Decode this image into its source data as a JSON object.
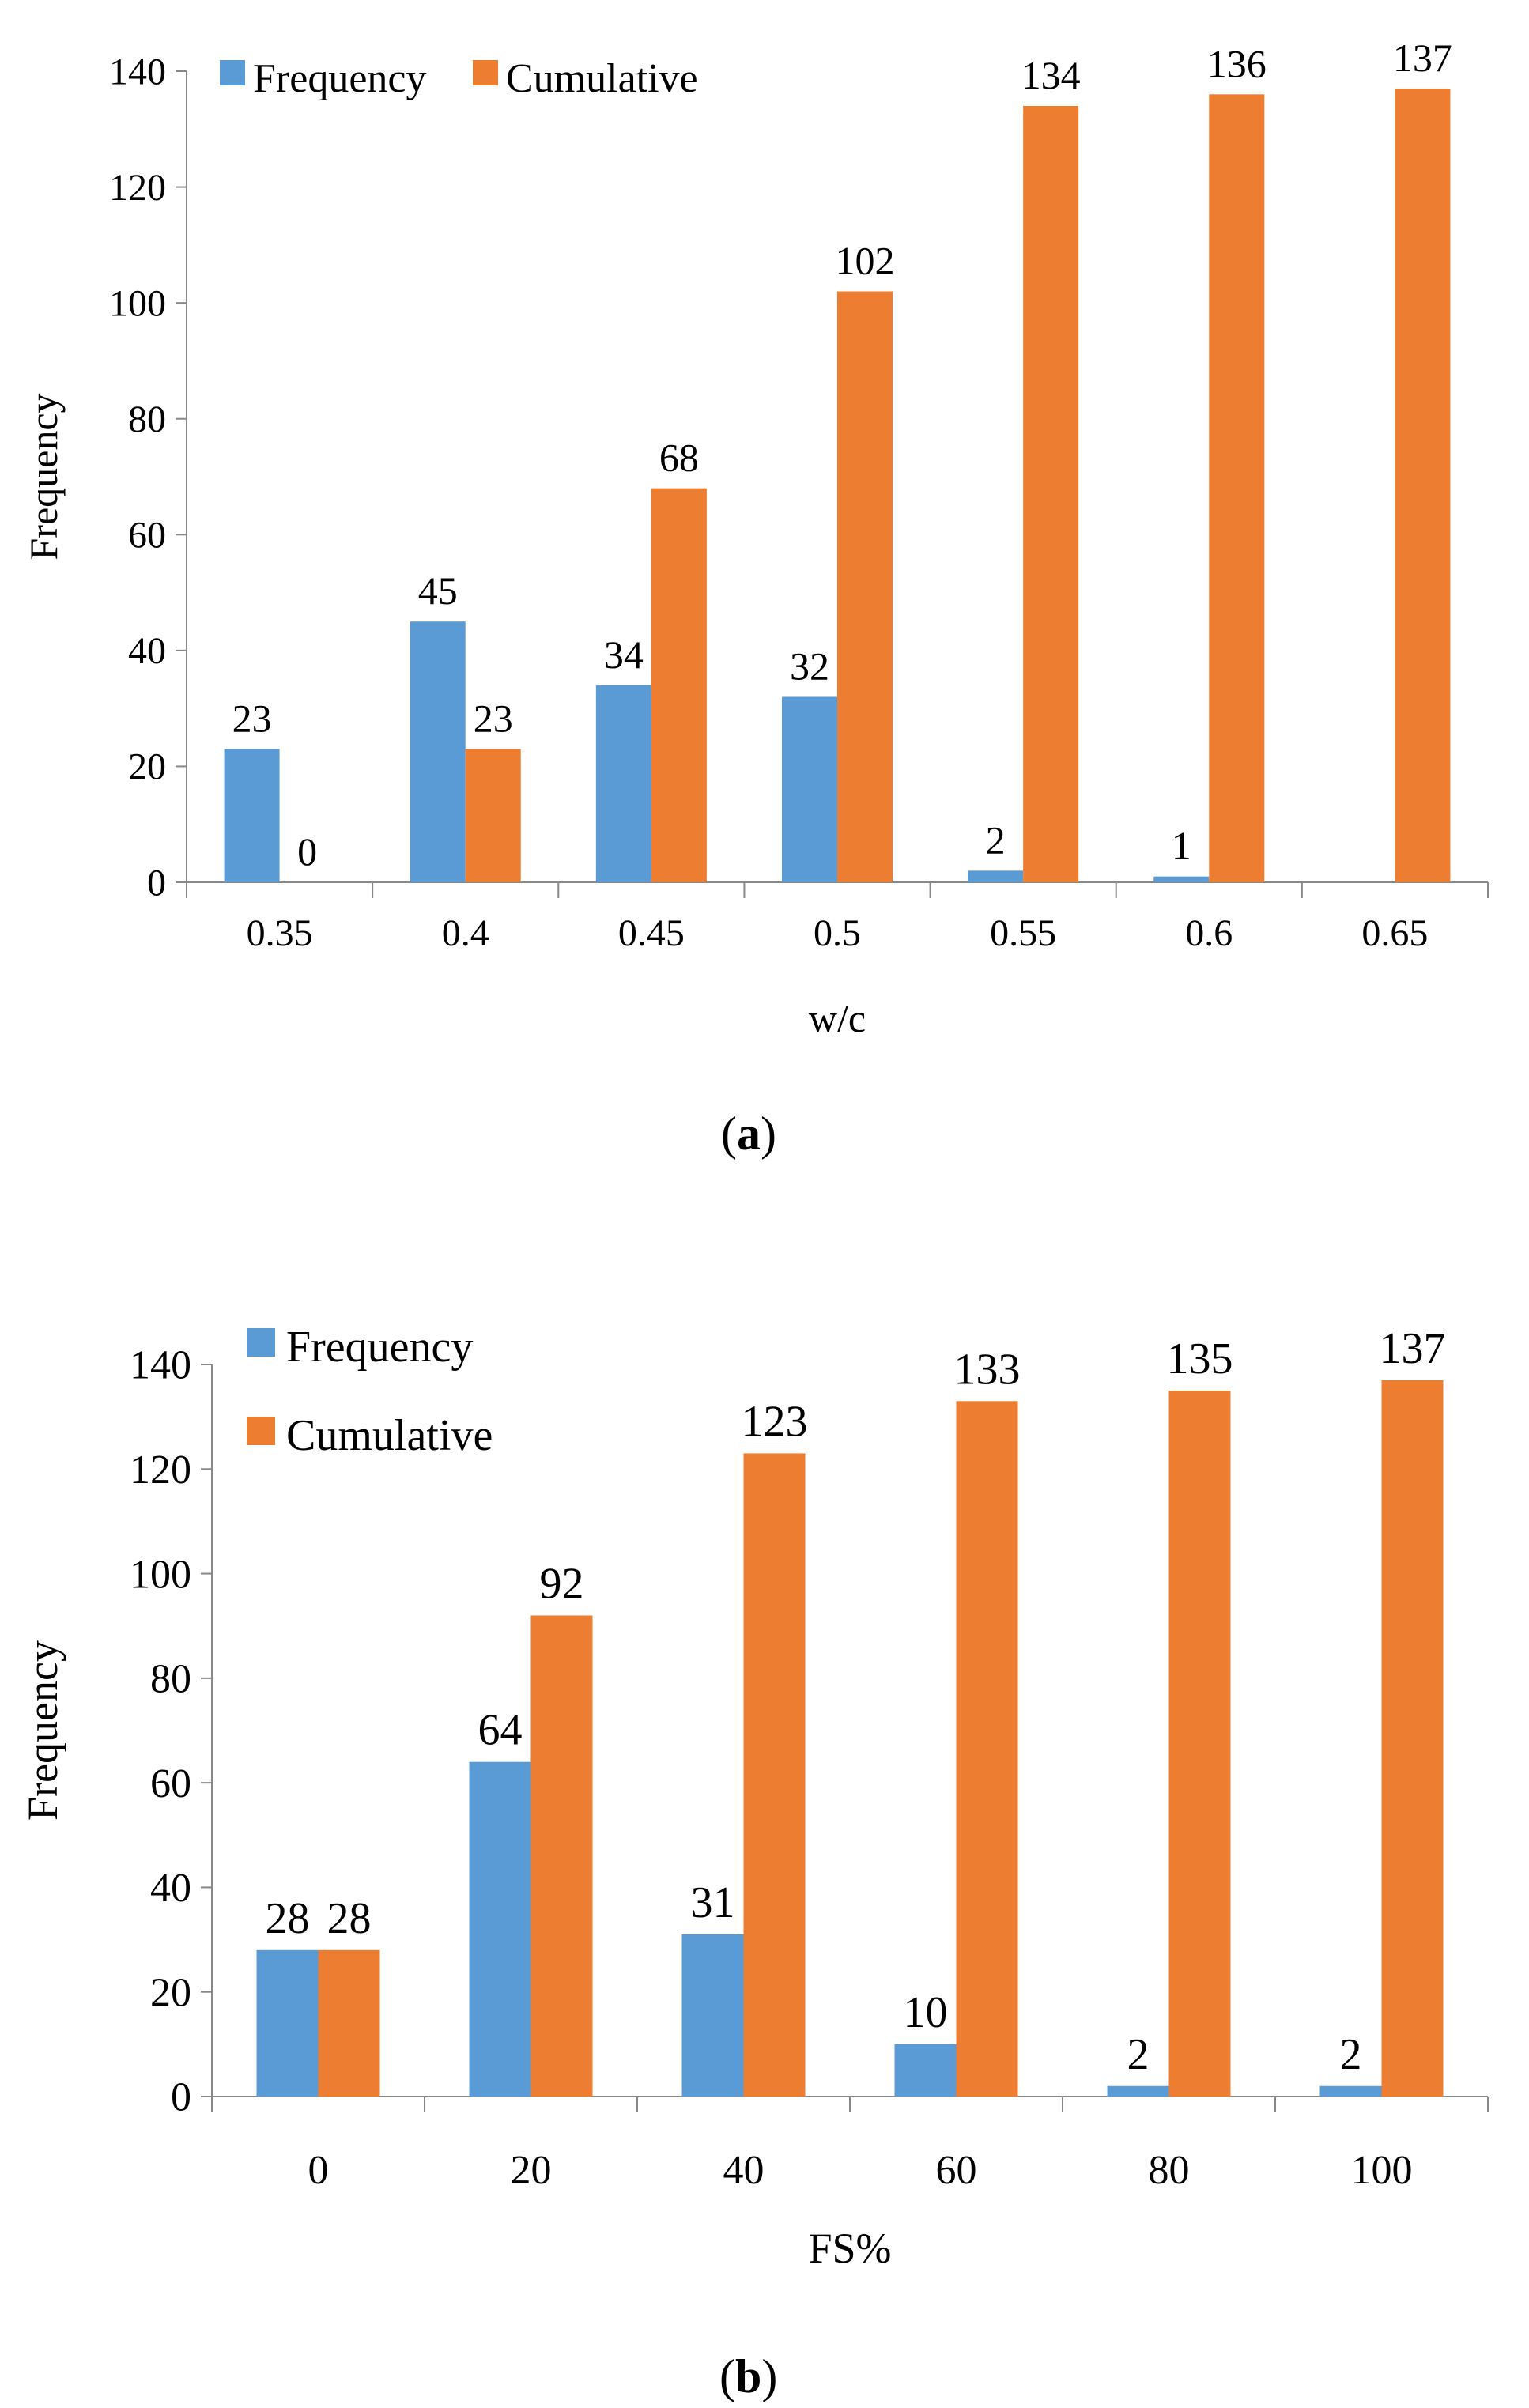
{
  "colors": {
    "frequency": "#5B9BD5",
    "cumulative": "#ED7D31",
    "axis": "#888888"
  },
  "chart_data": [
    {
      "type": "bar",
      "panel": "(a)",
      "panel_letter": "a",
      "xlabel": "w/c",
      "ylabel": "Frequency",
      "ylim": [
        0,
        140
      ],
      "yticks": [
        "0",
        "20",
        "40",
        "60",
        "80",
        "100",
        "120",
        "140"
      ],
      "legend_position": "top-left-inline",
      "categories": [
        "0.35",
        "0.4",
        "0.45",
        "0.5",
        "0.55",
        "0.6",
        "0.65"
      ],
      "series": [
        {
          "name": "Frequency",
          "values": [
            23,
            45,
            34,
            32,
            2,
            1,
            0
          ],
          "labels": [
            "23",
            "45",
            "34",
            "32",
            "2",
            "1",
            ""
          ]
        },
        {
          "name": "Cumulative",
          "values": [
            0,
            23,
            68,
            102,
            134,
            136,
            137
          ],
          "labels": [
            "0",
            "23",
            "68",
            "102",
            "134",
            "136",
            "137"
          ]
        }
      ]
    },
    {
      "type": "bar",
      "panel": "(b)",
      "panel_letter": "b",
      "xlabel": "FS%",
      "ylabel": "Frequency",
      "ylim": [
        0,
        140
      ],
      "yticks": [
        "0",
        "20",
        "40",
        "60",
        "80",
        "100",
        "120",
        "140"
      ],
      "legend_position": "top-left-stacked",
      "categories": [
        "0",
        "20",
        "40",
        "60",
        "80",
        "100"
      ],
      "series": [
        {
          "name": "Frequency",
          "values": [
            28,
            64,
            31,
            10,
            2,
            2
          ],
          "labels": [
            "28",
            "64",
            "31",
            "10",
            "2",
            "2"
          ]
        },
        {
          "name": "Cumulative",
          "values": [
            28,
            92,
            123,
            133,
            135,
            137
          ],
          "labels": [
            "28",
            "92",
            "123",
            "133",
            "135",
            "137"
          ]
        }
      ]
    }
  ]
}
